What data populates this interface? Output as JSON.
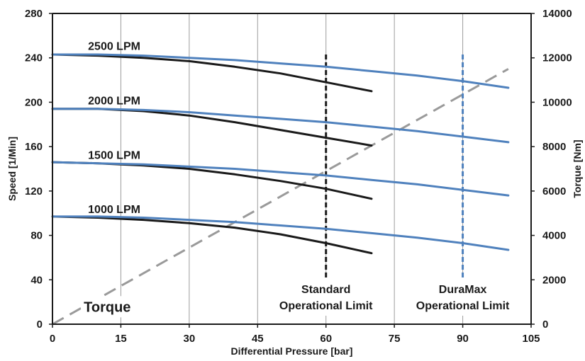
{
  "chart_data": {
    "type": "line",
    "title": "",
    "xlabel": "Differential Pressure [bar]",
    "ylabel_left": "Speed  [1/Min]",
    "ylabel_right": "Torque [Nm]",
    "xlim": [
      0,
      105
    ],
    "ylim_left": [
      0,
      280
    ],
    "ylim_right": [
      0,
      14000
    ],
    "x_ticks": [
      "0",
      "15",
      "30",
      "45",
      "60",
      "75",
      "90",
      "105"
    ],
    "y_ticks_left": [
      "0",
      "40",
      "80",
      "120",
      "160",
      "200",
      "240",
      "280"
    ],
    "y_ticks_right": [
      "0",
      "2000",
      "4000",
      "6000",
      "8000",
      "10000",
      "12000",
      "14000"
    ],
    "grid": "vertical",
    "colors": {
      "standard": "#1a1a1a",
      "duramax": "#4f81bd",
      "torque": "#9a9a9a"
    },
    "flow_labels": [
      {
        "text": "2500 LPM",
        "x": 5,
        "y": 247
      },
      {
        "text": "2000 LPM",
        "x": 5,
        "y": 198
      },
      {
        "text": "1500 LPM",
        "x": 5,
        "y": 149
      },
      {
        "text": "1000 LPM",
        "x": 5,
        "y": 100
      }
    ],
    "series": [
      {
        "group": "standard",
        "flow": "2500 LPM",
        "x": [
          0,
          10,
          20,
          30,
          40,
          50,
          60,
          70
        ],
        "y": [
          243,
          242,
          240,
          237,
          232,
          226,
          218,
          210
        ]
      },
      {
        "group": "standard",
        "flow": "2000 LPM",
        "x": [
          0,
          10,
          20,
          30,
          40,
          50,
          60,
          70
        ],
        "y": [
          194,
          194,
          192,
          188,
          182,
          175,
          168,
          161
        ]
      },
      {
        "group": "standard",
        "flow": "1500 LPM",
        "x": [
          0,
          10,
          20,
          30,
          40,
          50,
          60,
          70
        ],
        "y": [
          146,
          145,
          143,
          140,
          135,
          129,
          122,
          113
        ]
      },
      {
        "group": "standard",
        "flow": "1000 LPM",
        "x": [
          0,
          10,
          20,
          30,
          40,
          50,
          60,
          70
        ],
        "y": [
          97,
          96,
          94,
          91,
          87,
          81,
          73,
          64
        ]
      },
      {
        "group": "duramax",
        "flow": "2500 LPM",
        "x": [
          0,
          10,
          20,
          30,
          40,
          50,
          60,
          70,
          80,
          90,
          100
        ],
        "y": [
          243,
          243,
          242,
          240,
          238,
          235,
          232,
          228,
          224,
          219,
          213
        ]
      },
      {
        "group": "duramax",
        "flow": "2000 LPM",
        "x": [
          0,
          10,
          20,
          30,
          40,
          50,
          60,
          70,
          80,
          90,
          100
        ],
        "y": [
          194,
          194,
          193,
          191,
          188,
          185,
          182,
          178,
          174,
          169,
          164
        ]
      },
      {
        "group": "duramax",
        "flow": "1500 LPM",
        "x": [
          0,
          10,
          20,
          30,
          40,
          50,
          60,
          70,
          80,
          90,
          100
        ],
        "y": [
          146,
          145,
          144,
          142,
          140,
          137,
          134,
          130,
          126,
          121,
          116
        ]
      },
      {
        "group": "duramax",
        "flow": "1000 LPM",
        "x": [
          0,
          10,
          20,
          30,
          40,
          50,
          60,
          70,
          80,
          90,
          100
        ],
        "y": [
          97,
          97,
          96,
          94,
          92,
          89,
          86,
          82,
          78,
          73,
          67
        ]
      }
    ],
    "torque": {
      "name": "Torque",
      "label_x": 5,
      "label_y": 10,
      "x": [
        0,
        100
      ],
      "y": [
        0,
        11500
      ]
    },
    "limits": [
      {
        "name": "Standard Operational Limit",
        "lines": [
          "Standard",
          "Operational Limit"
        ],
        "x": 60,
        "group": "standard",
        "y_top": 243,
        "y_bottom": 22
      },
      {
        "name": "DuraMax Operational Limit",
        "lines": [
          "DuraMax",
          "Operational Limit"
        ],
        "x": 90,
        "group": "duramax",
        "y_top": 243,
        "y_bottom": 22
      }
    ]
  }
}
